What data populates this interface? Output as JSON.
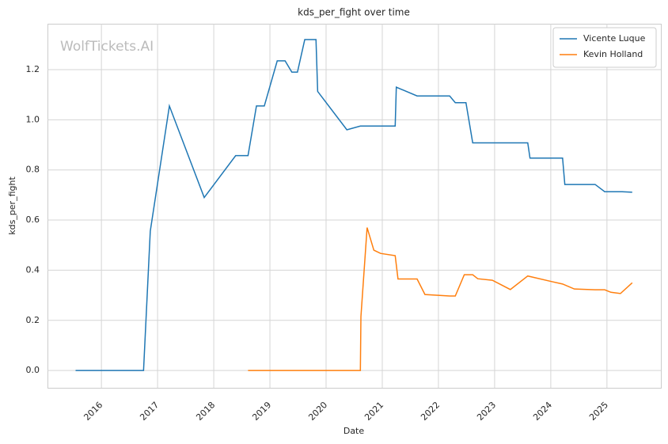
{
  "chart_data": {
    "type": "line",
    "title": "kds_per_fight over time",
    "xlabel": "Date",
    "ylabel": "kds_per_fight",
    "watermark": "WolfTickets.AI",
    "xlim": [
      2015.04,
      2025.96
    ],
    "ylim": [
      -0.069,
      1.383
    ],
    "xticks": [
      2016,
      2017,
      2018,
      2019,
      2020,
      2021,
      2022,
      2023,
      2024,
      2025
    ],
    "yticks": [
      {
        "value": 0,
        "label": "0.0"
      },
      0.2,
      0.4,
      0.6,
      0.8,
      {
        "value": 1,
        "label": "1.0"
      },
      1.2
    ],
    "grid": true,
    "legend": "upper right",
    "series": [
      {
        "name": "Vicente Luque",
        "color": "#1f77b4",
        "x": [
          2015.54,
          2016.75,
          2016.87,
          2017.21,
          2017.83,
          2018.39,
          2018.61,
          2018.76,
          2018.9,
          2019.13,
          2019.27,
          2019.39,
          2019.49,
          2019.62,
          2019.82,
          2019.85,
          2020.37,
          2020.61,
          2021.23,
          2021.25,
          2021.62,
          2022.2,
          2022.3,
          2022.49,
          2022.61,
          2023.59,
          2023.63,
          2024.21,
          2024.25,
          2024.79,
          2024.96,
          2025.27,
          2025.45
        ],
        "values": [
          0,
          0,
          0.556,
          1.055,
          0.69,
          0.857,
          0.857,
          1.055,
          1.055,
          1.235,
          1.235,
          1.19,
          1.19,
          1.32,
          1.32,
          1.113,
          0.96,
          0.975,
          0.975,
          1.13,
          1.095,
          1.095,
          1.068,
          1.068,
          0.908,
          0.908,
          0.847,
          0.847,
          0.742,
          0.742,
          0.713,
          0.713,
          0.711
        ]
      },
      {
        "name": "Kevin Holland",
        "color": "#ff7f0e",
        "x": [
          2018.61,
          2020.61,
          2020.62,
          2020.73,
          2020.85,
          2020.97,
          2021.23,
          2021.28,
          2021.62,
          2021.76,
          2022.2,
          2022.3,
          2022.46,
          2022.61,
          2022.7,
          2022.96,
          2023.28,
          2023.59,
          2024.01,
          2024.21,
          2024.42,
          2024.79,
          2024.96,
          2025.07,
          2025.24,
          2025.45
        ],
        "values": [
          0,
          0,
          0.215,
          0.57,
          0.48,
          0.467,
          0.458,
          0.365,
          0.365,
          0.303,
          0.297,
          0.297,
          0.382,
          0.382,
          0.366,
          0.36,
          0.323,
          0.377,
          0.355,
          0.345,
          0.325,
          0.322,
          0.322,
          0.312,
          0.307,
          0.35
        ]
      }
    ]
  }
}
